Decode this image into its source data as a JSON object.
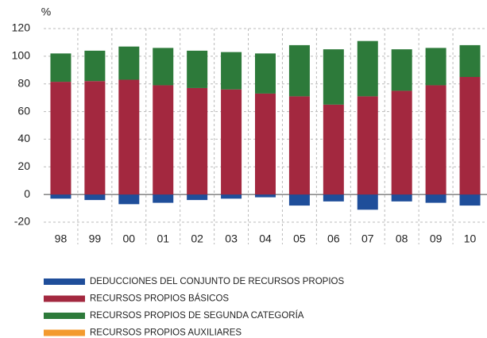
{
  "chart_data": {
    "type": "bar",
    "stacked": true,
    "unit": "%",
    "categories": [
      "98",
      "99",
      "00",
      "01",
      "02",
      "03",
      "04",
      "05",
      "06",
      "07",
      "08",
      "09",
      "10"
    ],
    "series": [
      {
        "name": "DEDUCCIONES DEL CONJUNTO DE RECURSOS PROPIOS",
        "color": "#1f4e9a",
        "values": [
          -3,
          -4,
          -7,
          -6,
          -4,
          -3,
          -2,
          -8,
          -5,
          -11,
          -5,
          -6,
          -8
        ]
      },
      {
        "name": "RECURSOS PROPIOS BÁSICOS",
        "color": "#a3283f",
        "values": [
          81.5,
          82,
          83,
          79,
          77,
          76,
          73,
          71,
          65,
          71,
          75,
          79,
          85
        ]
      },
      {
        "name": "RECURSOS PROPIOS DE SEGUNDA CATEGORÍA",
        "color": "#2d7a3a",
        "values": [
          20.5,
          22,
          24,
          27,
          27,
          27,
          29,
          37,
          40,
          40,
          30,
          27,
          23
        ]
      },
      {
        "name": "RECURSOS PROPIOS AUXILIARES",
        "color": "#f39a2e",
        "values": [
          0,
          0,
          0,
          0,
          0,
          0,
          0,
          0,
          0,
          0,
          0,
          0,
          0
        ]
      }
    ],
    "ylim": [
      -20,
      120
    ],
    "yticks": [
      -20,
      0,
      20,
      40,
      60,
      80,
      100,
      120
    ],
    "grid": true
  }
}
